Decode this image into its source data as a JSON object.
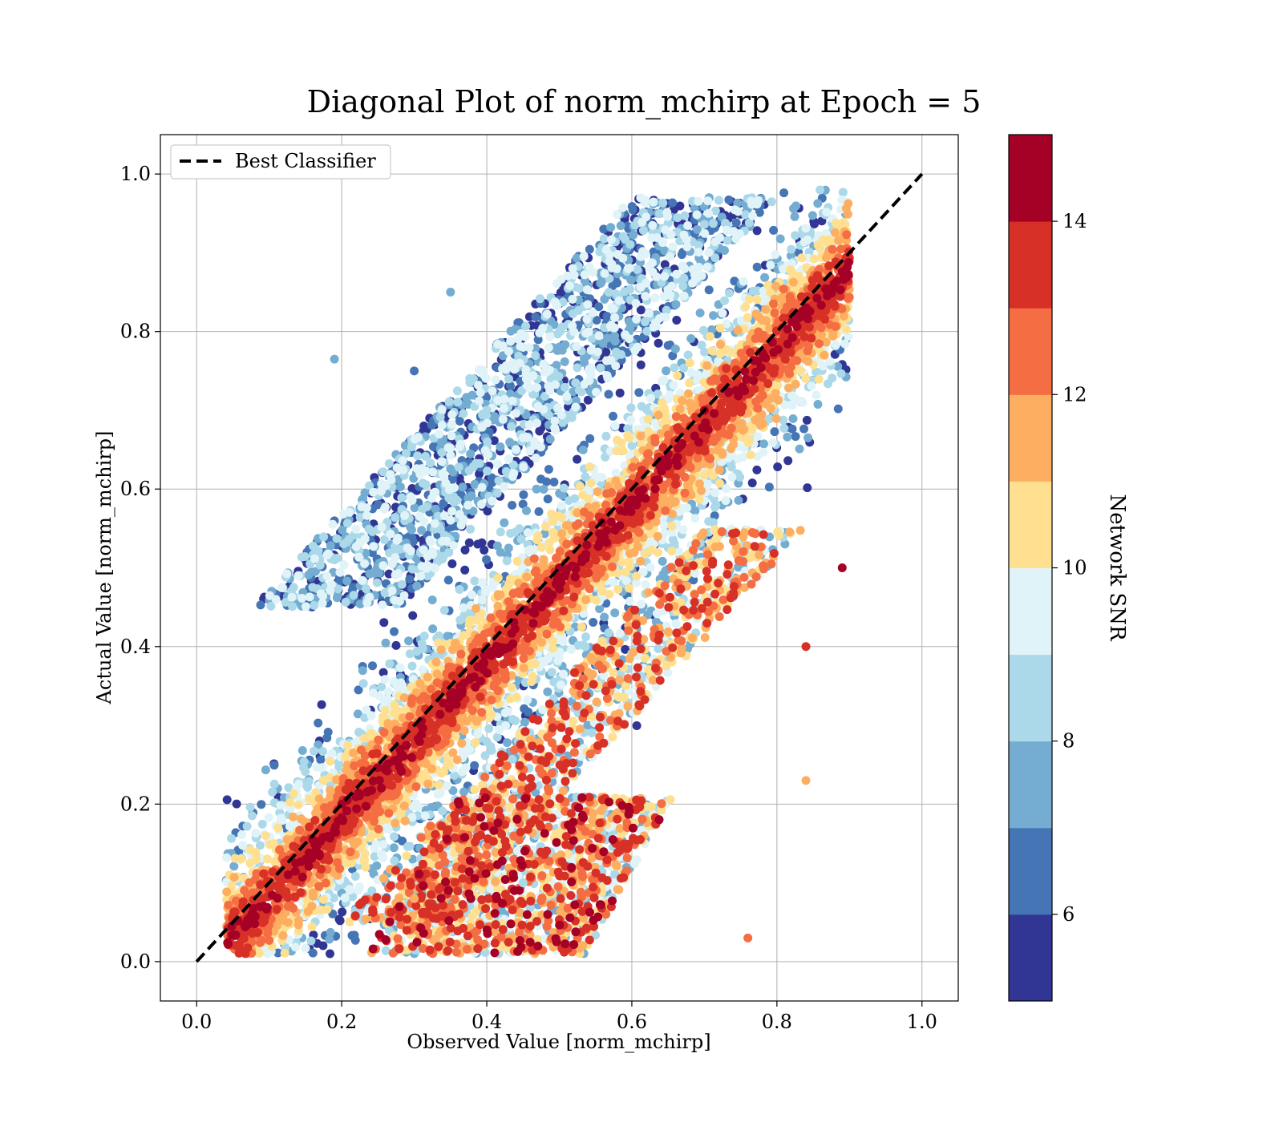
{
  "chart_data": {
    "type": "scatter",
    "title": "Diagonal Plot of norm_mchirp at Epoch = 5",
    "xlabel": "Observed Value [norm_mchirp]",
    "ylabel": "Actual Value [norm_mchirp]",
    "xlim": [
      -0.05,
      1.05
    ],
    "ylim": [
      -0.05,
      1.05
    ],
    "xticks": [
      "0.0",
      "0.2",
      "0.4",
      "0.6",
      "0.8",
      "1.0"
    ],
    "yticks": [
      "0.0",
      "0.2",
      "0.4",
      "0.6",
      "0.8",
      "1.0"
    ],
    "grid": true,
    "legend": {
      "position": "top-left",
      "entries": [
        "Best Classifier"
      ]
    },
    "reference_line": {
      "name": "Best Classifier",
      "style": "dashed",
      "color": "#000000",
      "x": [
        0,
        1
      ],
      "y": [
        0,
        1
      ]
    },
    "colorbar": {
      "label": "Network SNR",
      "range": [
        5,
        15
      ],
      "ticks": [
        "6",
        "8",
        "10",
        "12",
        "14"
      ],
      "tick_values": [
        6,
        8,
        10,
        12,
        14
      ],
      "colors": [
        "#313695",
        "#4575b4",
        "#74add1",
        "#abd9e9",
        "#e0f3f8",
        "#fee090",
        "#fdae61",
        "#f46d43",
        "#d73027",
        "#a50026"
      ]
    },
    "representative_points": [
      {
        "x": 0.3,
        "y": 0.75,
        "snr": 6
      },
      {
        "x": 0.35,
        "y": 0.85,
        "snr": 7
      },
      {
        "x": 0.4,
        "y": 0.7,
        "snr": 8
      },
      {
        "x": 0.45,
        "y": 0.78,
        "snr": 9
      },
      {
        "x": 0.5,
        "y": 0.5,
        "snr": 15
      },
      {
        "x": 0.7,
        "y": 0.7,
        "snr": 15
      },
      {
        "x": 0.2,
        "y": 0.2,
        "snr": 14
      },
      {
        "x": 0.3,
        "y": 0.08,
        "snr": 11
      },
      {
        "x": 0.45,
        "y": 0.1,
        "snr": 8
      },
      {
        "x": 0.89,
        "y": 0.5,
        "snr": 15
      },
      {
        "x": 0.84,
        "y": 0.4,
        "snr": 13
      },
      {
        "x": 0.84,
        "y": 0.23,
        "snr": 11
      },
      {
        "x": 0.76,
        "y": 0.03,
        "snr": 12
      },
      {
        "x": 0.19,
        "y": 0.765,
        "snr": 7
      },
      {
        "x": 0.19,
        "y": 0.51,
        "snr": 8
      }
    ]
  }
}
